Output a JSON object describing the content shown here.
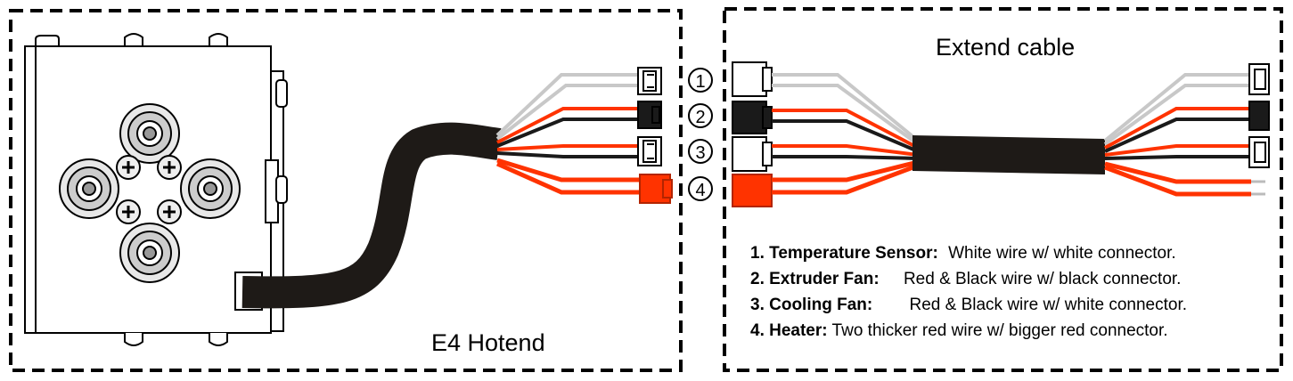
{
  "panels": {
    "left_title": "E4 Hotend",
    "right_title": "Extend cable"
  },
  "markers": [
    "①",
    "②",
    "③",
    "④"
  ],
  "legend": [
    {
      "label": "1. Temperature  Sensor:",
      "desc": "White wire w/ white connector."
    },
    {
      "label": "2. Extruder Fan:",
      "desc": "Red & Black wire w/ black connector."
    },
    {
      "label": "3. Cooling Fan:",
      "desc": "Red & Black wire w/ white connector."
    },
    {
      "label": "4. Heater:",
      "desc": "Two thicker red wire w/ bigger red connector."
    }
  ],
  "colors": {
    "wire_white": "#c8c8c8",
    "wire_red": "#ff3300",
    "wire_black": "#1a1a1a",
    "cable_sheath": "#1e1a17",
    "heater_connector": "#ff3300",
    "outline": "#000000"
  }
}
